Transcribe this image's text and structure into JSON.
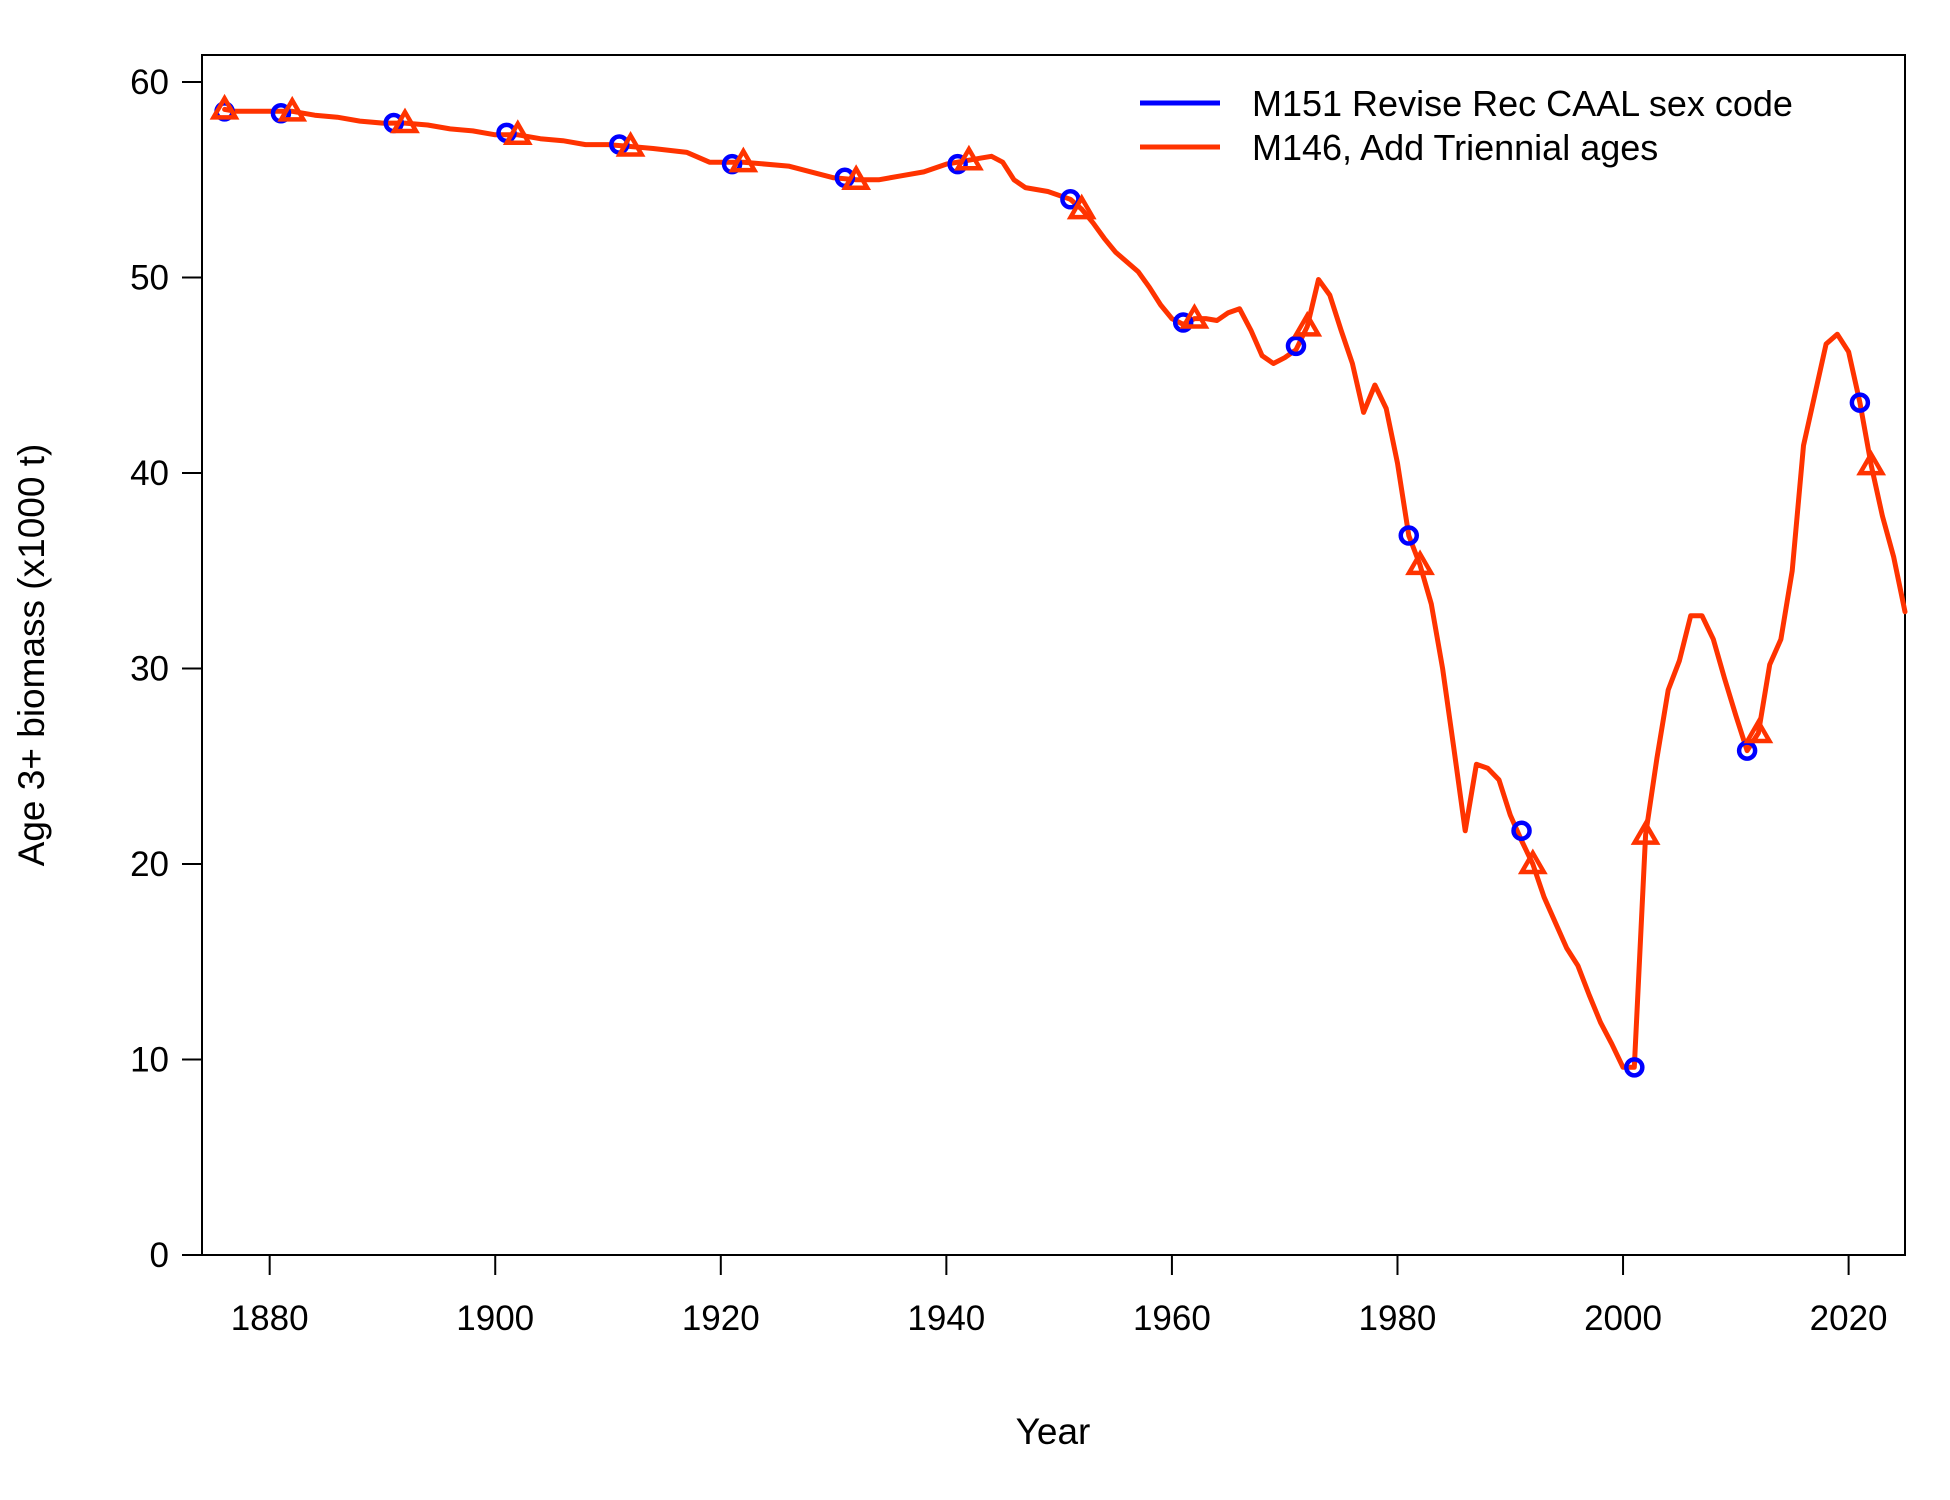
{
  "chart_data": {
    "type": "line",
    "xlabel": "Year",
    "ylabel": "Age 3+ biomass (x1000 t)",
    "xlim": [
      1874,
      2025
    ],
    "ylim": [
      0,
      60
    ],
    "x_ticks": [
      1880,
      1900,
      1920,
      1940,
      1960,
      1980,
      2000,
      2020
    ],
    "y_ticks": [
      0,
      10,
      20,
      30,
      40,
      50,
      60
    ],
    "legend_position": "top-right",
    "series": [
      {
        "name": "M151 Revise Rec CAAL sex code",
        "color": "#0000ff",
        "marker": "circle",
        "marker_x": [
          1876,
          1881,
          1891,
          1901,
          1911,
          1921,
          1931,
          1941,
          1951,
          1961,
          1971,
          1981,
          1991,
          2001,
          2011,
          2021
        ],
        "marker_y": [
          58.5,
          58.4,
          57.9,
          57.4,
          56.8,
          55.8,
          55.1,
          55.8,
          54.0,
          47.7,
          46.5,
          36.8,
          21.7,
          9.6,
          25.8,
          43.6
        ]
      },
      {
        "name": "M146, Add Triennial ages",
        "color": "#ff3300",
        "marker": "triangle",
        "x": [
          1876,
          1877,
          1878,
          1880,
          1882,
          1884,
          1886,
          1888,
          1890,
          1892,
          1894,
          1896,
          1898,
          1900,
          1902,
          1904,
          1906,
          1908,
          1910,
          1912,
          1914,
          1917,
          1919,
          1922,
          1926,
          1928,
          1930,
          1932,
          1934,
          1936,
          1938,
          1940,
          1942,
          1943,
          1944,
          1945,
          1946,
          1947,
          1949,
          1951,
          1952,
          1953,
          1954,
          1955,
          1957,
          1958,
          1959,
          1960,
          1961,
          1962,
          1963,
          1964,
          1965,
          1966,
          1967,
          1968,
          1969,
          1970,
          1971,
          1972,
          1973,
          1974,
          1975,
          1976,
          1977,
          1978,
          1979,
          1980,
          1981,
          1982,
          1983,
          1984,
          1985,
          1986,
          1987,
          1988,
          1989,
          1990,
          1991,
          1992,
          1993,
          1994,
          1995,
          1996,
          1997,
          1998,
          1999,
          2000,
          2001,
          2002,
          2003,
          2004,
          2005,
          2006,
          2007,
          2008,
          2009,
          2010,
          2011,
          2012,
          2013,
          2014,
          2015,
          2016,
          2017,
          2018,
          2019,
          2020,
          2021,
          2022,
          2023,
          2024,
          2025
        ],
        "y": [
          58.6,
          58.5,
          58.5,
          58.5,
          58.5,
          58.3,
          58.2,
          58.0,
          57.9,
          57.9,
          57.8,
          57.6,
          57.5,
          57.3,
          57.3,
          57.1,
          57.0,
          56.8,
          56.8,
          56.7,
          56.6,
          56.4,
          55.9,
          55.9,
          55.7,
          55.4,
          55.1,
          55.0,
          55.0,
          55.2,
          55.4,
          55.8,
          56.0,
          56.1,
          56.2,
          55.9,
          55.0,
          54.6,
          54.4,
          54.0,
          53.5,
          52.8,
          52.0,
          51.3,
          50.3,
          49.5,
          48.6,
          47.9,
          47.6,
          47.9,
          47.9,
          47.8,
          48.2,
          48.4,
          47.3,
          46.0,
          45.6,
          45.9,
          46.3,
          47.5,
          49.9,
          49.1,
          47.3,
          45.6,
          43.1,
          44.5,
          43.3,
          40.5,
          36.8,
          35.3,
          33.3,
          30.0,
          25.9,
          21.7,
          25.1,
          24.9,
          24.3,
          22.5,
          21.2,
          20.0,
          18.3,
          17.0,
          15.7,
          14.8,
          13.3,
          11.9,
          10.8,
          9.6,
          9.6,
          21.5,
          25.4,
          28.9,
          30.4,
          32.7,
          32.7,
          31.5,
          29.5,
          27.6,
          25.8,
          26.7,
          30.2,
          31.5,
          35.0,
          41.4,
          44.0,
          46.6,
          47.1,
          46.2,
          43.6,
          40.4,
          37.8,
          35.7,
          32.9
        ],
        "marker_x": [
          1876,
          1882,
          1892,
          1902,
          1912,
          1922,
          1932,
          1942,
          1952,
          1962,
          1972,
          1982,
          1992,
          2002,
          2012,
          2022
        ],
        "marker_y": [
          58.6,
          58.5,
          57.9,
          57.3,
          56.7,
          55.9,
          55.0,
          56.0,
          53.5,
          47.9,
          47.5,
          35.3,
          20.0,
          21.5,
          26.7,
          40.4
        ]
      }
    ]
  }
}
